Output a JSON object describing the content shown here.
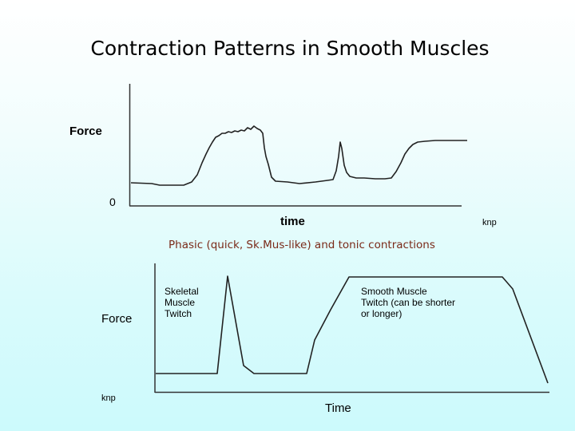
{
  "title": "Contraction Patterns in Smooth Muscles",
  "top_chart": {
    "ylabel": "Force",
    "y_zero": "0",
    "xlabel": "time",
    "credit": "knp"
  },
  "caption": "Phasic (quick, Sk.Mus-like) and tonic contractions",
  "bottom_chart": {
    "ylabel": "Force",
    "xlabel": "Time",
    "credit": "knp",
    "annotation_left": [
      "Skeletal",
      "Muscle",
      "Twitch"
    ],
    "annotation_right": [
      "Smooth Muscle",
      "Twitch (can be shorter",
      "or longer)"
    ]
  }
}
